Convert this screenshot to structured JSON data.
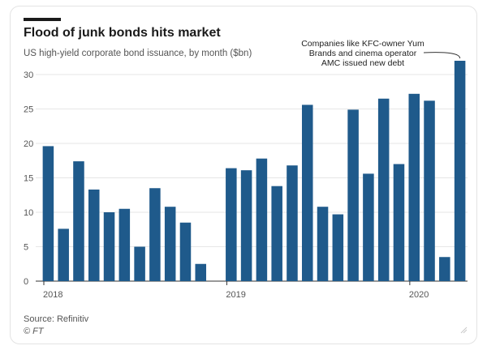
{
  "header": {
    "title": "Flood of junk bonds hits market",
    "subtitle": "US high-yield corporate bond issuance, by month ($bn)"
  },
  "footer": {
    "source": "Source: Refinitiv",
    "copyright": "© FT"
  },
  "chart_data": {
    "type": "bar",
    "title": "Flood of junk bonds hits market",
    "subtitle": "US high-yield corporate bond issuance, by month ($bn)",
    "xlabel": "",
    "ylabel": "",
    "ylim": [
      0,
      32
    ],
    "yticks": [
      0,
      5,
      10,
      15,
      20,
      25,
      30
    ],
    "grid": true,
    "bar_color": "#1f5a8b",
    "categories": [
      "2018-01",
      "2018-02",
      "2018-03",
      "2018-04",
      "2018-05",
      "2018-06",
      "2018-07",
      "2018-08",
      "2018-09",
      "2018-10",
      "2018-11",
      "2018-12",
      "2019-01",
      "2019-02",
      "2019-03",
      "2019-04",
      "2019-05",
      "2019-06",
      "2019-07",
      "2019-08",
      "2019-09",
      "2019-10",
      "2019-11",
      "2019-12",
      "2020-01",
      "2020-02",
      "2020-03",
      "2020-04"
    ],
    "values": [
      19.6,
      7.6,
      17.4,
      13.3,
      10.0,
      10.5,
      5.0,
      13.5,
      10.8,
      8.5,
      2.5,
      0,
      16.4,
      16.1,
      17.8,
      13.8,
      16.8,
      25.6,
      10.8,
      9.7,
      24.9,
      15.6,
      26.5,
      17.0,
      27.2,
      26.2,
      3.5,
      32.0
    ],
    "year_labels": [
      {
        "label": "2018",
        "index": 0
      },
      {
        "label": "2019",
        "index": 12
      },
      {
        "label": "2020",
        "index": 24
      }
    ],
    "annotation": {
      "lines": [
        "Companies like KFC-owner Yum",
        "Brands and cinema operator",
        "AMC issued new debt"
      ],
      "target_index": 27
    }
  }
}
